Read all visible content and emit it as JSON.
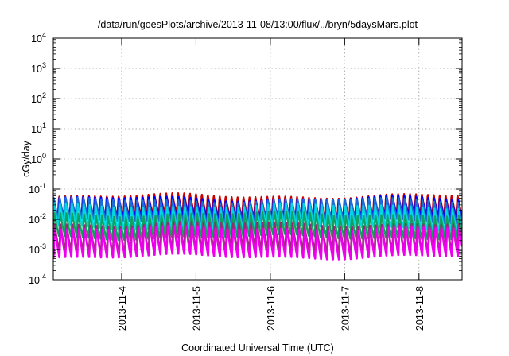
{
  "chart_data": {
    "type": "line",
    "title": "/data/run/goesPlots/archive/2013-11-08/13:00/flux/../bryn/5daysMars.plot",
    "xlabel": "Coordinated Universal Time (UTC)",
    "ylabel": "cGy/day",
    "y_scale": "log",
    "ylim": [
      0.0001,
      10000
    ],
    "xlim": [
      3.08,
      8.58
    ],
    "x_unit": "day of November 2013",
    "grid": true,
    "legend": "none",
    "x_ticks": [
      {
        "value": 4,
        "label": "2013-11-4"
      },
      {
        "value": 5,
        "label": "2013-11-5"
      },
      {
        "value": 6,
        "label": "2013-11-6"
      },
      {
        "value": 7,
        "label": "2013-11-7"
      },
      {
        "value": 8,
        "label": "2013-11-8"
      }
    ],
    "y_ticks": [
      {
        "value": 0.0001,
        "base": "10",
        "exp": "-4"
      },
      {
        "value": 0.001,
        "base": "10",
        "exp": "-3"
      },
      {
        "value": 0.01,
        "base": "10",
        "exp": "-2"
      },
      {
        "value": 0.1,
        "base": "10",
        "exp": "-1"
      },
      {
        "value": 1,
        "base": "10",
        "exp": "0"
      },
      {
        "value": 10,
        "base": "10",
        "exp": "1"
      },
      {
        "value": 100,
        "base": "10",
        "exp": "2"
      },
      {
        "value": 1000,
        "base": "10",
        "exp": "3"
      },
      {
        "value": 10000,
        "base": "10",
        "exp": "4"
      }
    ],
    "period_days": 0.08,
    "series": [
      {
        "color": "#cc0000",
        "peak": 0.065,
        "trough": 0.012
      },
      {
        "color": "#0000ff",
        "peak": 0.055,
        "trough": 0.01
      },
      {
        "color": "#1e6ed2",
        "peak": 0.045,
        "trough": 0.008
      },
      {
        "color": "#00d8e0",
        "peak": 0.028,
        "trough": 0.005
      },
      {
        "color": "#10a060",
        "peak": 0.016,
        "trough": 0.0025
      },
      {
        "color": "#9a2a78",
        "peak": 0.008,
        "trough": 0.0009
      },
      {
        "color": "#ee00ee",
        "peak": 0.006,
        "trough": 0.0005
      }
    ]
  }
}
